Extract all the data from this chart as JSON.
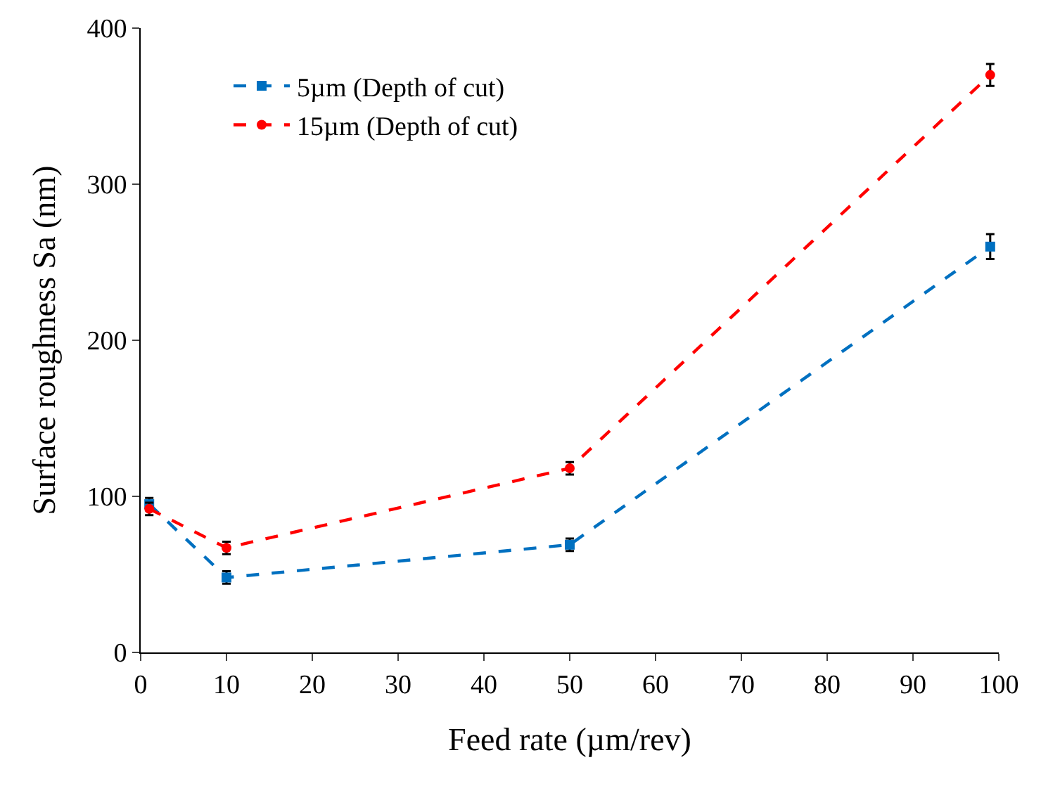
{
  "chart_data": {
    "type": "line",
    "xlabel": "Feed rate (µm/rev)",
    "ylabel": "Surface roughness Sa (nm)",
    "xlim": [
      0,
      100
    ],
    "xticks": [
      0,
      10,
      20,
      30,
      40,
      50,
      60,
      70,
      80,
      90,
      100
    ],
    "ylim": [
      0,
      400
    ],
    "yticks": [
      0,
      100,
      200,
      300,
      400
    ],
    "legend": "top left",
    "line_style": "dashed",
    "series": [
      {
        "name": "5µm (Depth of cut)",
        "color": "#0070c0",
        "marker": "square",
        "x": [
          1,
          10,
          50,
          99
        ],
        "values": [
          95,
          48,
          69,
          260
        ],
        "errors": [
          4,
          4,
          4,
          8
        ]
      },
      {
        "name": "15µm (Depth of cut)",
        "color": "#ff0000",
        "marker": "circle",
        "x": [
          1,
          10,
          50,
          99
        ],
        "values": [
          92,
          67,
          118,
          370
        ],
        "errors": [
          4,
          4,
          4,
          7
        ]
      }
    ]
  }
}
